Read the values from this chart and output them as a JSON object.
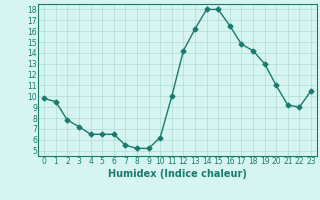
{
  "x": [
    0,
    1,
    2,
    3,
    4,
    5,
    6,
    7,
    8,
    9,
    10,
    11,
    12,
    13,
    14,
    15,
    16,
    17,
    18,
    19,
    20,
    21,
    22,
    23
  ],
  "y": [
    9.8,
    9.5,
    7.8,
    7.2,
    6.5,
    6.5,
    6.5,
    5.5,
    5.2,
    5.2,
    6.2,
    10.0,
    14.2,
    16.2,
    18.0,
    18.0,
    16.5,
    14.8,
    14.2,
    13.0,
    11.0,
    9.2,
    9.0,
    10.5
  ],
  "line_color": "#1a7a6e",
  "marker": "D",
  "marker_size": 2.5,
  "linewidth": 1.0,
  "bg_color": "#d6f5f0",
  "grid_color": "#b0dcd6",
  "xlabel": "Humidex (Indice chaleur)",
  "xlabel_fontsize": 7,
  "xlim": [
    -0.5,
    23.5
  ],
  "ylim": [
    4.5,
    18.5
  ],
  "yticks": [
    5,
    6,
    7,
    8,
    9,
    10,
    11,
    12,
    13,
    14,
    15,
    16,
    17,
    18
  ],
  "xticks": [
    0,
    1,
    2,
    3,
    4,
    5,
    6,
    7,
    8,
    9,
    10,
    11,
    12,
    13,
    14,
    15,
    16,
    17,
    18,
    19,
    20,
    21,
    22,
    23
  ],
  "tick_fontsize": 5.5,
  "tick_color": "#1a7a6e",
  "spine_color": "#1a7a6e"
}
